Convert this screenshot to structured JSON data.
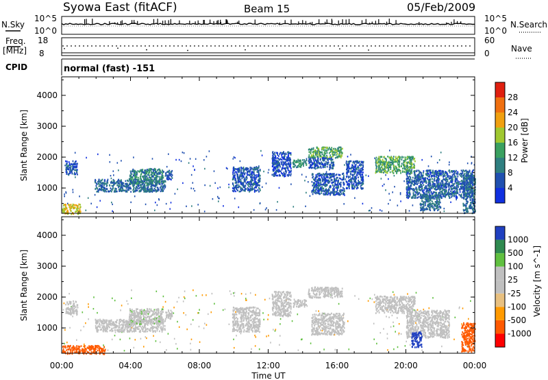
{
  "header": {
    "station": "Syowa East (fitACF)",
    "beam": "Beam 15",
    "date": "05/Feb/2009"
  },
  "strip": {
    "nsky_label": "N.Sky",
    "nsky_ticks": [
      "10^5",
      "10^0"
    ],
    "nsearch_label": "N.Search",
    "nsearch_ticks": [
      "10^5",
      "10^0"
    ],
    "freq_label": "Freq.",
    "freq_unit": "[MHz]",
    "freq_ticks": [
      "18",
      "8"
    ],
    "nave_label": "Nave",
    "nave_ticks": [
      "60",
      "0"
    ],
    "cpid_label": "CPID",
    "cpid_value": "normal (fast) -151"
  },
  "x_axis": {
    "title": "Time UT",
    "ticks": [
      "00:00",
      "04:00",
      "08:00",
      "12:00",
      "16:00",
      "20:00",
      "00:00"
    ]
  },
  "power_panel": {
    "ylabel": "Slant Range [km]",
    "yticks": [
      "4000",
      "3000",
      "2000",
      "1000"
    ],
    "colorbar_label": "Power [dB]",
    "colorbar_ticks": [
      "28",
      "24",
      "20",
      "16",
      "12",
      "8",
      "4"
    ],
    "colors": [
      "#1030e0",
      "#2050b0",
      "#2f7f80",
      "#3aa060",
      "#a0c830",
      "#f0a010",
      "#f07010",
      "#e02010"
    ]
  },
  "velocity_panel": {
    "ylabel": "Slant Range [km]",
    "yticks": [
      "4000",
      "3000",
      "2000",
      "1000"
    ],
    "colorbar_label": "Velocity [m s^-1]",
    "colorbar_ticks": [
      "1000",
      "500",
      "100",
      "25",
      "-25",
      "-100",
      "-500",
      "-1000"
    ],
    "colors": [
      "#ff0000",
      "#ff5a00",
      "#ff9a00",
      "#e8c080",
      "#c0c0c0",
      "#c0c0c0",
      "#60c040",
      "#2f8a50",
      "#2040c0"
    ]
  },
  "chart_data": [
    {
      "type": "heatmap",
      "title": "",
      "xlabel": "Time UT",
      "ylabel": "Slant Range [km]",
      "xlim": [
        0,
        24
      ],
      "ylim": [
        180,
        4600
      ],
      "colorbar": "Power [dB]",
      "clim": [
        0,
        32
      ],
      "patches": [
        {
          "t": [
            0.2,
            0.9
          ],
          "r": [
            1450,
            1900
          ],
          "v": 6
        },
        {
          "t": [
            0.0,
            1.1
          ],
          "r": [
            180,
            500
          ],
          "v": 20
        },
        {
          "t": [
            1.9,
            6.0
          ],
          "r": [
            900,
            1300
          ],
          "v": 8
        },
        {
          "t": [
            3.9,
            5.9
          ],
          "r": [
            1150,
            1650
          ],
          "v": 10
        },
        {
          "t": [
            6.0,
            6.4
          ],
          "r": [
            1300,
            1600
          ],
          "v": 6
        },
        {
          "t": [
            9.9,
            11.5
          ],
          "r": [
            900,
            1700
          ],
          "v": 6
        },
        {
          "t": [
            12.2,
            13.3
          ],
          "r": [
            1400,
            2200
          ],
          "v": 5
        },
        {
          "t": [
            13.4,
            14.2
          ],
          "r": [
            1700,
            1950
          ],
          "v": 12
        },
        {
          "t": [
            14.3,
            16.3
          ],
          "r": [
            2000,
            2350
          ],
          "v": 14
        },
        {
          "t": [
            14.3,
            15.8
          ],
          "r": [
            1650,
            2000
          ],
          "v": 6
        },
        {
          "t": [
            14.5,
            16.4
          ],
          "r": [
            800,
            1500
          ],
          "v": 6
        },
        {
          "t": [
            16.5,
            17.5
          ],
          "r": [
            1000,
            1900
          ],
          "v": 6
        },
        {
          "t": [
            18.2,
            20.5
          ],
          "r": [
            1500,
            2050
          ],
          "v": 14
        },
        {
          "t": [
            20.0,
            23.9
          ],
          "r": [
            700,
            1600
          ],
          "v": 7
        },
        {
          "t": [
            20.8,
            22.0
          ],
          "r": [
            300,
            800
          ],
          "v": 8
        },
        {
          "t": [
            23.3,
            24.0
          ],
          "r": [
            200,
            1450
          ],
          "v": 8
        }
      ]
    },
    {
      "type": "heatmap",
      "title": "",
      "xlabel": "Time UT",
      "ylabel": "Slant Range [km]",
      "xlim": [
        0,
        24
      ],
      "ylim": [
        180,
        4600
      ],
      "colorbar": "Velocity [m s^-1]",
      "clim": [
        -1000,
        1000
      ],
      "patches": [
        {
          "t": [
            0.2,
            0.9
          ],
          "r": [
            1450,
            1900
          ],
          "v": 0
        },
        {
          "t": [
            0.0,
            2.5
          ],
          "r": [
            180,
            450
          ],
          "v": -300
        },
        {
          "t": [
            1.9,
            6.0
          ],
          "r": [
            900,
            1300
          ],
          "v": 0
        },
        {
          "t": [
            3.9,
            5.9
          ],
          "r": [
            1150,
            1650
          ],
          "v": 10
        },
        {
          "t": [
            6.0,
            6.4
          ],
          "r": [
            1300,
            1600
          ],
          "v": 0
        },
        {
          "t": [
            9.9,
            11.5
          ],
          "r": [
            900,
            1700
          ],
          "v": 0
        },
        {
          "t": [
            12.2,
            13.3
          ],
          "r": [
            1400,
            2200
          ],
          "v": 0
        },
        {
          "t": [
            13.4,
            14.2
          ],
          "r": [
            1700,
            1950
          ],
          "v": 0
        },
        {
          "t": [
            14.3,
            16.3
          ],
          "r": [
            2000,
            2350
          ],
          "v": 0
        },
        {
          "t": [
            14.5,
            16.4
          ],
          "r": [
            800,
            1500
          ],
          "v": 0
        },
        {
          "t": [
            18.2,
            20.5
          ],
          "r": [
            1500,
            2050
          ],
          "v": 0
        },
        {
          "t": [
            20.0,
            22.5
          ],
          "r": [
            700,
            1600
          ],
          "v": 0
        },
        {
          "t": [
            20.3,
            20.9
          ],
          "r": [
            400,
            900
          ],
          "v": 800
        },
        {
          "t": [
            23.2,
            24.0
          ],
          "r": [
            250,
            1200
          ],
          "v": -400
        }
      ]
    }
  ]
}
